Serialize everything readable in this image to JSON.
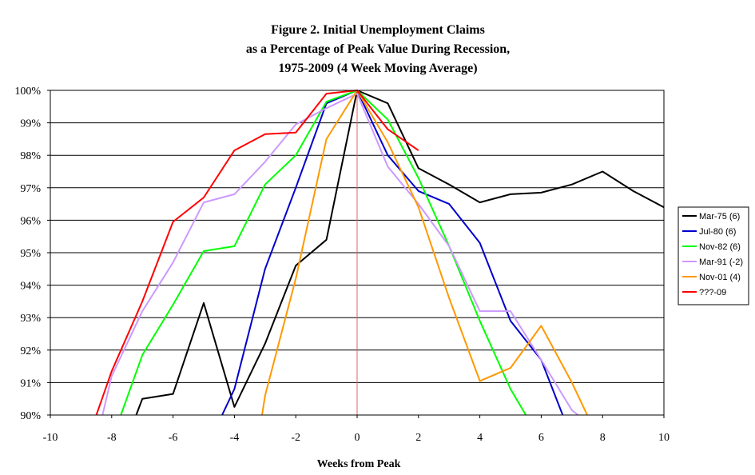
{
  "chart_data": {
    "type": "line",
    "title": [
      "Figure 2.  Initial Unemployment Claims",
      "as a Percentage of Peak Value During Recession,",
      "1975-2009 (4 Week Moving Average)"
    ],
    "xlabel": "Weeks from Peak",
    "ylabel": "",
    "xlim": [
      -10,
      10
    ],
    "ylim": [
      90,
      100
    ],
    "x_ticks": [
      "-10",
      "-8",
      "-6",
      "-4",
      "-2",
      "0",
      "2",
      "4",
      "6",
      "8",
      "10"
    ],
    "y_ticks": [
      "90%",
      "91%",
      "92%",
      "93%",
      "94%",
      "95%",
      "96%",
      "97%",
      "98%",
      "99%",
      "100%"
    ],
    "grid": "horizontal",
    "reference_line_x": 0,
    "legend_position": "right",
    "series": [
      {
        "name": "Mar-75 (6)",
        "color": "#000000",
        "points": [
          [
            -7.2,
            89.8
          ],
          [
            -7,
            90.5
          ],
          [
            -6,
            90.65
          ],
          [
            -5,
            93.45
          ],
          [
            -4,
            90.25
          ],
          [
            -3,
            92.2
          ],
          [
            -2,
            94.6
          ],
          [
            -1,
            95.4
          ],
          [
            0,
            100
          ],
          [
            1,
            99.6
          ],
          [
            2,
            97.6
          ],
          [
            3,
            97.1
          ],
          [
            4,
            96.55
          ],
          [
            5,
            96.8
          ],
          [
            6,
            96.85
          ],
          [
            7,
            97.1
          ],
          [
            8,
            97.5
          ],
          [
            9,
            96.9
          ],
          [
            10,
            96.4
          ]
        ]
      },
      {
        "name": "Jul-80 (6)",
        "color": "#0000cc",
        "points": [
          [
            -4.4,
            89.8
          ],
          [
            -4,
            90.8
          ],
          [
            -3,
            94.5
          ],
          [
            -2,
            97.0
          ],
          [
            -1,
            99.6
          ],
          [
            0,
            100
          ],
          [
            1,
            98.0
          ],
          [
            2,
            96.9
          ],
          [
            3,
            96.5
          ],
          [
            4,
            95.3
          ],
          [
            5,
            92.9
          ],
          [
            6,
            91.7
          ],
          [
            6.7,
            89.8
          ]
        ]
      },
      {
        "name": "Nov-82 (6)",
        "color": "#00ff00",
        "points": [
          [
            -7.7,
            89.8
          ],
          [
            -7,
            91.85
          ],
          [
            -6,
            93.4
          ],
          [
            -5,
            95.05
          ],
          [
            -4,
            95.2
          ],
          [
            -3,
            97.1
          ],
          [
            -2,
            98.0
          ],
          [
            -1,
            99.65
          ],
          [
            0,
            100
          ],
          [
            1,
            99.1
          ],
          [
            2,
            97.3
          ],
          [
            3,
            95.2
          ],
          [
            4,
            92.9
          ],
          [
            5,
            90.8
          ],
          [
            5.5,
            89.8
          ]
        ]
      },
      {
        "name": "Mar-91 (-2)",
        "color": "#cc99ff",
        "points": [
          [
            -8.3,
            89.8
          ],
          [
            -8,
            91.2
          ],
          [
            -7,
            93.2
          ],
          [
            -6,
            94.7
          ],
          [
            -5,
            96.55
          ],
          [
            -4,
            96.8
          ],
          [
            -3,
            97.8
          ],
          [
            -2,
            98.95
          ],
          [
            -1,
            99.45
          ],
          [
            0,
            99.9
          ],
          [
            1,
            97.65
          ],
          [
            2,
            96.5
          ],
          [
            3,
            95.2
          ],
          [
            4,
            93.2
          ],
          [
            5,
            93.2
          ],
          [
            6,
            91.7
          ],
          [
            7,
            90.15
          ],
          [
            7.2,
            89.8
          ]
        ]
      },
      {
        "name": "Nov-01 (4)",
        "color": "#ff9900",
        "points": [
          [
            -3.1,
            89.8
          ],
          [
            -3,
            90.6
          ],
          [
            -2,
            94.2
          ],
          [
            -1,
            98.5
          ],
          [
            0,
            100
          ],
          [
            1,
            98.4
          ],
          [
            2,
            96.4
          ],
          [
            3,
            93.6
          ],
          [
            4,
            91.05
          ],
          [
            5,
            91.45
          ],
          [
            6,
            92.75
          ],
          [
            7,
            91.0
          ],
          [
            7.5,
            89.8
          ]
        ]
      },
      {
        "name": "???-09",
        "color": "#ff0000",
        "points": [
          [
            -8.5,
            89.8
          ],
          [
            -8,
            91.35
          ],
          [
            -7,
            93.5
          ],
          [
            -6,
            95.95
          ],
          [
            -5,
            96.7
          ],
          [
            -4,
            98.15
          ],
          [
            -3,
            98.65
          ],
          [
            -2,
            98.7
          ],
          [
            -1,
            99.9
          ],
          [
            0,
            100
          ],
          [
            1,
            98.8
          ],
          [
            2,
            98.15
          ]
        ]
      }
    ]
  }
}
